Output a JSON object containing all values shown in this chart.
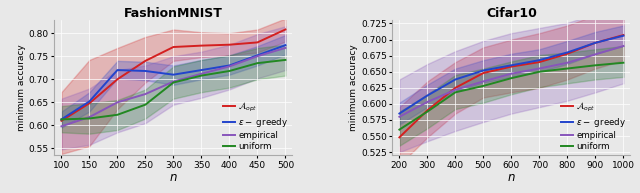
{
  "fashion": {
    "title": "FashionMNIST",
    "xlabel": "n",
    "ylabel": "minimum accuracy",
    "x": [
      100,
      150,
      200,
      250,
      300,
      350,
      400,
      450,
      500
    ],
    "opt_mean": [
      0.61,
      0.648,
      0.7,
      0.74,
      0.77,
      0.773,
      0.775,
      0.78,
      0.808
    ],
    "opt_lo": [
      0.538,
      0.555,
      0.635,
      0.693,
      0.74,
      0.748,
      0.752,
      0.758,
      0.782
    ],
    "opt_hi": [
      0.672,
      0.742,
      0.768,
      0.792,
      0.808,
      0.802,
      0.8,
      0.808,
      0.832
    ],
    "eps_mean": [
      0.613,
      0.652,
      0.72,
      0.718,
      0.71,
      0.72,
      0.73,
      0.752,
      0.774
    ],
    "eps_lo": [
      0.595,
      0.63,
      0.702,
      0.698,
      0.688,
      0.7,
      0.71,
      0.73,
      0.754
    ],
    "eps_hi": [
      0.63,
      0.672,
      0.74,
      0.738,
      0.73,
      0.742,
      0.752,
      0.772,
      0.796
    ],
    "emp_mean": [
      0.598,
      0.618,
      0.65,
      0.668,
      0.695,
      0.712,
      0.728,
      0.75,
      0.768
    ],
    "emp_lo": [
      0.548,
      0.558,
      0.585,
      0.605,
      0.645,
      0.66,
      0.678,
      0.702,
      0.72
    ],
    "emp_hi": [
      0.658,
      0.68,
      0.72,
      0.73,
      0.75,
      0.76,
      0.775,
      0.798,
      0.815
    ],
    "uni_mean": [
      0.613,
      0.615,
      0.623,
      0.645,
      0.693,
      0.708,
      0.718,
      0.735,
      0.742
    ],
    "uni_lo": [
      0.585,
      0.582,
      0.59,
      0.615,
      0.658,
      0.672,
      0.682,
      0.7,
      0.708
    ],
    "uni_hi": [
      0.642,
      0.648,
      0.655,
      0.678,
      0.728,
      0.742,
      0.752,
      0.768,
      0.775
    ],
    "ylim": [
      0.535,
      0.828
    ],
    "yticks": [
      0.55,
      0.6,
      0.65,
      0.7,
      0.75,
      0.8
    ],
    "xticks": [
      100,
      150,
      200,
      250,
      300,
      350,
      400,
      450,
      500
    ]
  },
  "cifar": {
    "title": "Cifar10",
    "xlabel": "n",
    "ylabel": "minimum accuracy",
    "x": [
      200,
      300,
      400,
      500,
      600,
      700,
      800,
      900,
      1000
    ],
    "opt_mean": [
      0.548,
      0.59,
      0.625,
      0.648,
      0.658,
      0.665,
      0.678,
      0.695,
      0.707
    ],
    "opt_lo": [
      0.505,
      0.548,
      0.585,
      0.61,
      0.618,
      0.625,
      0.638,
      0.655,
      0.668
    ],
    "opt_hi": [
      0.595,
      0.635,
      0.665,
      0.688,
      0.7,
      0.71,
      0.722,
      0.738,
      0.75
    ],
    "eps_mean": [
      0.585,
      0.613,
      0.638,
      0.652,
      0.66,
      0.668,
      0.68,
      0.695,
      0.706
    ],
    "eps_lo": [
      0.568,
      0.595,
      0.62,
      0.633,
      0.642,
      0.65,
      0.662,
      0.678,
      0.69
    ],
    "eps_hi": [
      0.602,
      0.63,
      0.655,
      0.668,
      0.678,
      0.685,
      0.698,
      0.712,
      0.722
    ],
    "emp_mean": [
      0.58,
      0.603,
      0.622,
      0.635,
      0.647,
      0.655,
      0.664,
      0.677,
      0.69
    ],
    "emp_lo": [
      0.525,
      0.542,
      0.558,
      0.572,
      0.585,
      0.595,
      0.605,
      0.618,
      0.632
    ],
    "emp_hi": [
      0.638,
      0.662,
      0.682,
      0.698,
      0.71,
      0.718,
      0.726,
      0.74,
      0.752
    ],
    "uni_mean": [
      0.56,
      0.588,
      0.618,
      0.628,
      0.64,
      0.65,
      0.655,
      0.66,
      0.664
    ],
    "uni_lo": [
      0.535,
      0.562,
      0.592,
      0.602,
      0.615,
      0.626,
      0.632,
      0.638,
      0.642
    ],
    "uni_hi": [
      0.588,
      0.615,
      0.645,
      0.655,
      0.666,
      0.676,
      0.68,
      0.685,
      0.69
    ],
    "ylim": [
      0.52,
      0.73
    ],
    "yticks": [
      0.525,
      0.55,
      0.575,
      0.6,
      0.625,
      0.65,
      0.675,
      0.7,
      0.725
    ],
    "xticks": [
      200,
      300,
      400,
      500,
      600,
      700,
      800,
      900,
      1000
    ]
  },
  "colors": {
    "opt": "#d42020",
    "eps": "#2244cc",
    "emp": "#8855bb",
    "uni": "#228822"
  },
  "legend_labels": {
    "opt": "$\\mathcal{A}_{opt}$",
    "eps": "$\\varepsilon - $ greedy",
    "emp": "empirical",
    "uni": "uniform"
  },
  "fig_bg": "#e8e8e8",
  "ax_bg": "#e8e8e8"
}
